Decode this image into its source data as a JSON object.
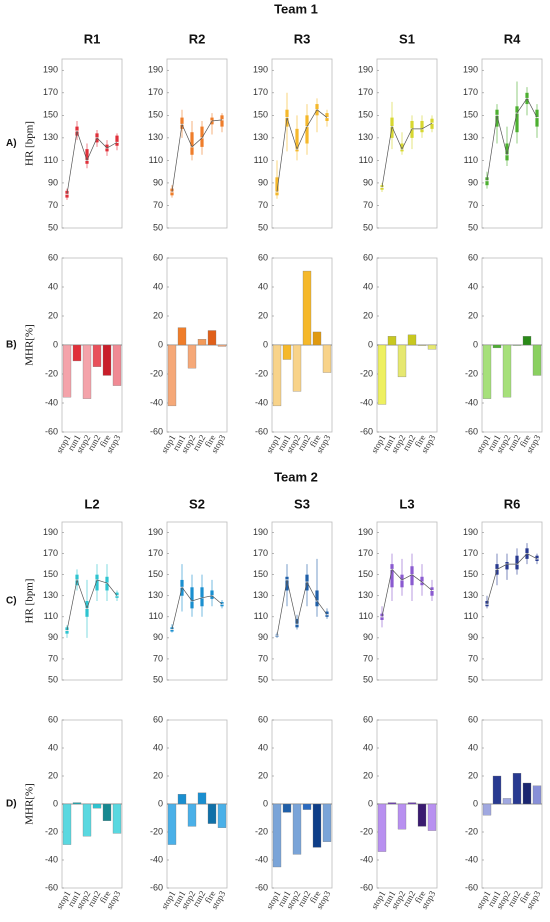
{
  "figure": {
    "groups": [
      {
        "title": "Team 1"
      },
      {
        "title": "Team 2"
      }
    ]
  },
  "chart_data": [
    {
      "type": "box",
      "title": "R1",
      "row_label": "A)",
      "ylabel": "HR [bpm]",
      "color": "#e0303a",
      "ylim": [
        50,
        200
      ],
      "yticks": [
        50,
        70,
        90,
        110,
        130,
        150,
        170,
        190
      ],
      "low": [
        75,
        128,
        103,
        122,
        114,
        119
      ],
      "q1": [
        77,
        132,
        107,
        126,
        118,
        123
      ],
      "median": [
        80,
        136,
        110,
        130,
        121,
        126
      ],
      "q3": [
        83,
        140,
        120,
        134,
        124,
        132
      ],
      "high": [
        85,
        145,
        125,
        137,
        128,
        134
      ]
    },
    {
      "type": "box",
      "title": "R2",
      "color": "#ef7d2a",
      "ylim": [
        50,
        200
      ],
      "yticks": [
        50,
        70,
        90,
        110,
        130,
        150,
        170,
        190
      ],
      "low": [
        77,
        130,
        110,
        115,
        133,
        135
      ],
      "q1": [
        79,
        138,
        115,
        122,
        142,
        140
      ],
      "median": [
        82,
        142,
        122,
        130,
        145,
        146
      ],
      "q3": [
        85,
        148,
        135,
        140,
        148,
        150
      ],
      "high": [
        88,
        155,
        145,
        145,
        152,
        152
      ]
    },
    {
      "type": "box",
      "title": "R3",
      "color": "#f5b82a",
      "ylim": [
        50,
        200
      ],
      "yticks": [
        50,
        70,
        90,
        110,
        130,
        150,
        170,
        190
      ],
      "low": [
        76,
        118,
        110,
        115,
        135,
        140
      ],
      "q1": [
        79,
        140,
        118,
        125,
        150,
        145
      ],
      "median": [
        82,
        148,
        120,
        140,
        155,
        148
      ],
      "q3": [
        95,
        155,
        138,
        150,
        160,
        152
      ],
      "high": [
        110,
        170,
        150,
        160,
        165,
        155
      ]
    },
    {
      "type": "box",
      "title": "S1",
      "color": "#d7d730",
      "ylim": [
        50,
        200
      ],
      "yticks": [
        50,
        70,
        90,
        110,
        130,
        150,
        170,
        190
      ],
      "low": [
        82,
        120,
        115,
        120,
        130,
        135
      ],
      "q1": [
        84,
        130,
        118,
        130,
        135,
        138
      ],
      "median": [
        86,
        140,
        120,
        138,
        138,
        143
      ],
      "q3": [
        88,
        148,
        125,
        145,
        145,
        147
      ],
      "high": [
        90,
        162,
        135,
        150,
        150,
        150
      ]
    },
    {
      "type": "box",
      "title": "R4",
      "color": "#4caf30",
      "ylim": [
        50,
        200
      ],
      "yticks": [
        50,
        70,
        90,
        110,
        130,
        150,
        170,
        190
      ],
      "low": [
        85,
        125,
        105,
        125,
        150,
        130
      ],
      "q1": [
        88,
        140,
        110,
        135,
        160,
        140
      ],
      "median": [
        92,
        150,
        115,
        152,
        165,
        148
      ],
      "q3": [
        95,
        155,
        125,
        158,
        170,
        155
      ],
      "high": [
        100,
        160,
        140,
        180,
        175,
        160
      ]
    },
    {
      "type": "bar",
      "row_label": "B)",
      "ylabel": "MHR[%]",
      "categories": [
        "stop1",
        "run1",
        "stop2",
        "run2",
        "fire",
        "stop3"
      ],
      "colors": [
        "#f4a3aa",
        "#e0303a",
        "#f4a3aa",
        "#e8505a",
        "#c81e2a",
        "#f08a94"
      ],
      "ylim": [
        -60,
        60
      ],
      "yticks": [
        -60,
        -40,
        -20,
        0,
        20,
        40,
        60
      ],
      "values": [
        -36,
        -11,
        -37,
        -15,
        -21,
        -28
      ]
    },
    {
      "type": "bar",
      "categories": [
        "stop1",
        "run1",
        "stop2",
        "run2",
        "fire",
        "stop3"
      ],
      "colors": [
        "#f5a878",
        "#ef7d2a",
        "#f5a878",
        "#f29a5a",
        "#e0601a",
        "#f5a878"
      ],
      "ylim": [
        -60,
        60
      ],
      "yticks": [
        -60,
        -40,
        -20,
        0,
        20,
        40,
        60
      ],
      "values": [
        -42,
        12,
        -16,
        4,
        10,
        -1
      ]
    },
    {
      "type": "bar",
      "categories": [
        "stop1",
        "run1",
        "stop2",
        "run2",
        "fire",
        "stop3"
      ],
      "colors": [
        "#f8d38a",
        "#f5b82a",
        "#f8d38a",
        "#f5b82a",
        "#e09a10",
        "#f8d38a"
      ],
      "ylim": [
        -60,
        60
      ],
      "yticks": [
        -60,
        -40,
        -20,
        0,
        20,
        40,
        60
      ],
      "values": [
        -42,
        -10,
        -32,
        51,
        9,
        -19
      ]
    },
    {
      "type": "bar",
      "categories": [
        "stop1",
        "run1",
        "stop2",
        "run2",
        "fire",
        "stop3"
      ],
      "colors": [
        "#eef060",
        "#c8c820",
        "#e6e870",
        "#c8c820",
        "#b0b010",
        "#e6e870"
      ],
      "ylim": [
        -60,
        60
      ],
      "yticks": [
        -60,
        -40,
        -20,
        0,
        20,
        40,
        60
      ],
      "values": [
        -41,
        6,
        -22,
        7,
        0,
        -3
      ]
    },
    {
      "type": "bar",
      "categories": [
        "stop1",
        "run1",
        "stop2",
        "run2",
        "fire",
        "stop3"
      ],
      "colors": [
        "#a6e07a",
        "#4caf30",
        "#a6e07a",
        "#4caf30",
        "#2a8a18",
        "#8ad060"
      ],
      "ylim": [
        -60,
        60
      ],
      "yticks": [
        -60,
        -40,
        -20,
        0,
        20,
        40,
        60
      ],
      "values": [
        -37,
        -2,
        -36,
        0,
        6,
        -21
      ]
    },
    {
      "type": "box",
      "title": "L2",
      "row_label": "C)",
      "ylabel": "HR [bpm]",
      "color": "#2ec4d0",
      "ylim": [
        50,
        200
      ],
      "yticks": [
        50,
        70,
        90,
        110,
        130,
        150,
        170,
        190
      ],
      "low": [
        90,
        135,
        90,
        125,
        125,
        125
      ],
      "q1": [
        94,
        140,
        110,
        135,
        135,
        128
      ],
      "median": [
        97,
        145,
        118,
        145,
        142,
        130
      ],
      "q3": [
        100,
        150,
        125,
        150,
        148,
        133
      ],
      "high": [
        102,
        155,
        145,
        160,
        160,
        135
      ]
    },
    {
      "type": "box",
      "title": "S2",
      "color": "#1a8fd0",
      "ylim": [
        50,
        200
      ],
      "yticks": [
        50,
        70,
        90,
        110,
        130,
        150,
        170,
        190
      ],
      "low": [
        95,
        115,
        110,
        110,
        120,
        118
      ],
      "q1": [
        96,
        130,
        118,
        120,
        127,
        120
      ],
      "median": [
        98,
        138,
        125,
        128,
        130,
        122
      ],
      "q3": [
        100,
        145,
        138,
        138,
        135,
        124
      ],
      "high": [
        103,
        160,
        150,
        150,
        145,
        126
      ]
    },
    {
      "type": "box",
      "title": "S3",
      "color": "#1f5fa8",
      "ylim": [
        50,
        200
      ],
      "yticks": [
        50,
        70,
        90,
        110,
        130,
        150,
        170,
        190
      ],
      "low": [
        90,
        120,
        98,
        120,
        110,
        108
      ],
      "q1": [
        91,
        135,
        100,
        135,
        120,
        110
      ],
      "median": [
        92,
        145,
        103,
        143,
        125,
        112
      ],
      "q3": [
        93,
        148,
        108,
        150,
        135,
        115
      ],
      "high": [
        95,
        160,
        112,
        160,
        165,
        118
      ]
    },
    {
      "type": "box",
      "title": "L3",
      "color": "#8a5ad0",
      "ylim": [
        50,
        200
      ],
      "yticks": [
        50,
        70,
        90,
        110,
        130,
        150,
        170,
        190
      ],
      "low": [
        100,
        125,
        130,
        125,
        130,
        125
      ],
      "q1": [
        107,
        138,
        138,
        140,
        140,
        130
      ],
      "median": [
        110,
        155,
        145,
        150,
        143,
        135
      ],
      "q3": [
        113,
        160,
        150,
        158,
        148,
        138
      ],
      "high": [
        120,
        170,
        165,
        170,
        160,
        145
      ]
    },
    {
      "type": "box",
      "title": "R6",
      "color": "#283a90",
      "ylim": [
        50,
        200
      ],
      "yticks": [
        50,
        70,
        90,
        110,
        130,
        150,
        170,
        190
      ],
      "low": [
        118,
        140,
        145,
        150,
        160,
        160
      ],
      "q1": [
        120,
        150,
        155,
        155,
        165,
        163
      ],
      "median": [
        122,
        155,
        160,
        160,
        170,
        165
      ],
      "q3": [
        125,
        160,
        162,
        168,
        175,
        168
      ],
      "high": [
        130,
        170,
        170,
        175,
        180,
        170
      ]
    },
    {
      "type": "bar",
      "row_label": "D)",
      "ylabel": "MHR[%]",
      "categories": [
        "stop1",
        "run1",
        "stop2",
        "run2",
        "fire",
        "stop3"
      ],
      "colors": [
        "#5ad8e0",
        "#1aa8b0",
        "#5ad8e0",
        "#2ec4d0",
        "#168890",
        "#5ad8e0"
      ],
      "ylim": [
        -60,
        60
      ],
      "yticks": [
        -60,
        -40,
        -20,
        0,
        20,
        40,
        60
      ],
      "values": [
        -29,
        1,
        -23,
        -3,
        -12,
        -21
      ]
    },
    {
      "type": "bar",
      "categories": [
        "stop1",
        "run1",
        "stop2",
        "run2",
        "fire",
        "stop3"
      ],
      "colors": [
        "#4ab0e8",
        "#1a8fd0",
        "#4ab0e8",
        "#1a8fd0",
        "#1070a8",
        "#4ab0e8"
      ],
      "ylim": [
        -60,
        60
      ],
      "yticks": [
        -60,
        -40,
        -20,
        0,
        20,
        40,
        60
      ],
      "values": [
        -29,
        7,
        -16,
        8,
        -14,
        -17
      ]
    },
    {
      "type": "bar",
      "categories": [
        "stop1",
        "run1",
        "stop2",
        "run2",
        "fire",
        "stop3"
      ],
      "colors": [
        "#7aa4d8",
        "#1f5fa8",
        "#7aa4d8",
        "#2a6ac0",
        "#0e3e88",
        "#7aa4d8"
      ],
      "ylim": [
        -60,
        60
      ],
      "yticks": [
        -60,
        -40,
        -20,
        0,
        20,
        40,
        60
      ],
      "values": [
        -45,
        -6,
        -36,
        -4,
        -31,
        -27
      ]
    },
    {
      "type": "bar",
      "categories": [
        "stop1",
        "run1",
        "stop2",
        "run2",
        "fire",
        "stop3"
      ],
      "colors": [
        "#b890f0",
        "#6a3ab0",
        "#b890f0",
        "#6a3ab0",
        "#3a1a70",
        "#b890f0"
      ],
      "ylim": [
        -60,
        60
      ],
      "yticks": [
        -60,
        -40,
        -20,
        0,
        20,
        40,
        60
      ],
      "values": [
        -34,
        1,
        -18,
        1,
        -16,
        -19
      ]
    },
    {
      "type": "bar",
      "categories": [
        "stop1",
        "run1",
        "stop2",
        "run2",
        "fire",
        "stop3"
      ],
      "colors": [
        "#a0a8e0",
        "#283a90",
        "#a0a8e0",
        "#283a90",
        "#1a2670",
        "#8890d8"
      ],
      "ylim": [
        -60,
        60
      ],
      "yticks": [
        -60,
        -40,
        -20,
        0,
        20,
        40,
        60
      ],
      "values": [
        -8,
        20,
        4,
        22,
        15,
        13
      ]
    }
  ]
}
